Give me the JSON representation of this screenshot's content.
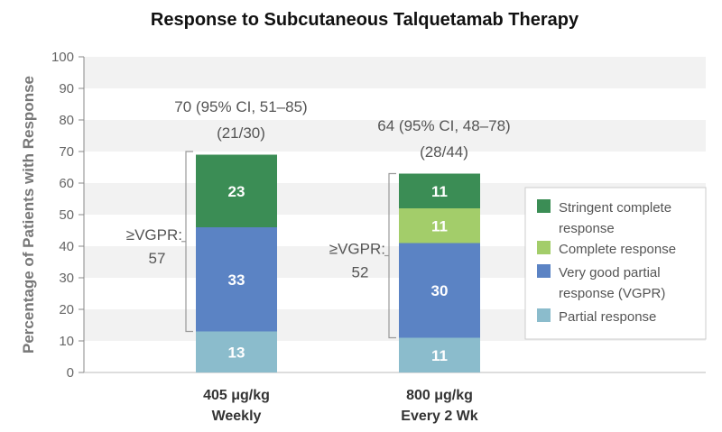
{
  "chart_data": {
    "type": "bar",
    "stacked": true,
    "title": "Response to Subcutaneous Talquetamab Therapy",
    "ylabel": "Percentage of Patients with Response",
    "xlabel": "",
    "ylim": [
      0,
      100
    ],
    "yticks": [
      0,
      10,
      20,
      30,
      40,
      50,
      60,
      70,
      80,
      90,
      100
    ],
    "grid": "alternating horizontal bands",
    "legend_position": "right",
    "categories": [
      {
        "line1": "405 μg/kg",
        "line2": "Weekly"
      },
      {
        "line1": "800 μg/kg",
        "line2": "Every 2 Wk"
      }
    ],
    "series": [
      {
        "name": "Partial response",
        "color": "#8bbccc",
        "values": [
          13,
          11
        ]
      },
      {
        "name": "Very good partial response (VGPR)",
        "color": "#5b83c4",
        "values": [
          33,
          30
        ]
      },
      {
        "name": "Complete response",
        "color": "#a3cd6a",
        "values": [
          0,
          11
        ]
      },
      {
        "name": "Stringent complete response",
        "color": "#3b8d55",
        "values": [
          23,
          11
        ]
      }
    ],
    "legend_order": [
      {
        "series": 3,
        "lines": [
          "Stringent complete",
          "response"
        ]
      },
      {
        "series": 2,
        "lines": [
          "Complete response"
        ]
      },
      {
        "series": 1,
        "lines": [
          "Very good partial",
          "response (VGPR)"
        ]
      },
      {
        "series": 0,
        "lines": [
          "Partial response"
        ]
      }
    ],
    "totals": [
      {
        "line1": "70 (95% CI, 51–85)",
        "line2": "(21/30)",
        "value": 70
      },
      {
        "line1": "64 (95% CI, 48–78)",
        "line2": "(28/44)",
        "value": 64
      }
    ],
    "vgpr_annotations": [
      {
        "line1": "≥VGPR:",
        "line2": "57",
        "range": [
          13,
          70
        ]
      },
      {
        "line1": "≥VGPR:",
        "line2": "52",
        "range": [
          11,
          63
        ]
      }
    ]
  }
}
